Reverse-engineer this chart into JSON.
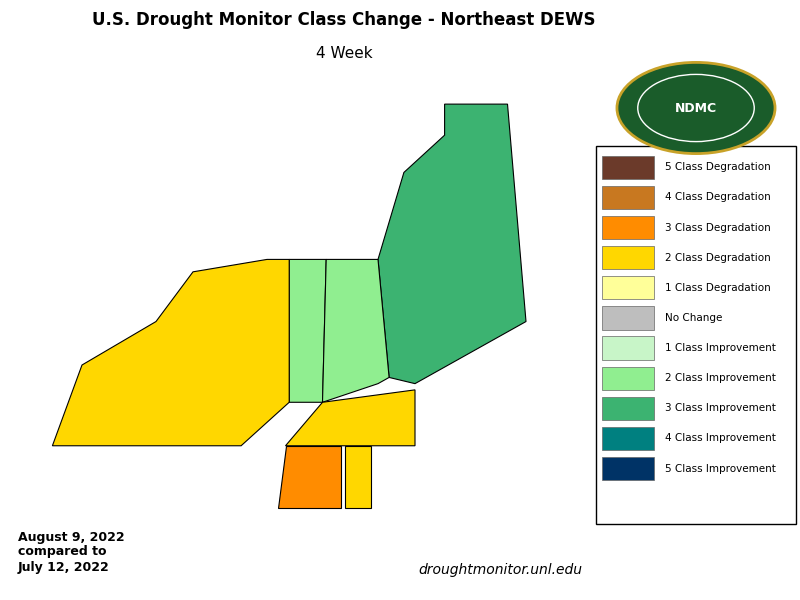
{
  "title_line1": "U.S. Drought Monitor Class Change - Northeast DEWS",
  "title_line2": "4 Week",
  "date_text": "August 9, 2022\ncompared to\nJuly 12, 2022",
  "website_text": "droughtmonitor.unl.edu",
  "legend_entries": [
    {
      "label": "5 Class Degradation",
      "color": "#6B3A2A"
    },
    {
      "label": "4 Class Degradation",
      "color": "#C87820"
    },
    {
      "label": "3 Class Degradation",
      "color": "#FF8C00"
    },
    {
      "label": "2 Class Degradation",
      "color": "#FFD700"
    },
    {
      "label": "1 Class Degradation",
      "color": "#FFFF99"
    },
    {
      "label": "No Change",
      "color": "#BEBEBE"
    },
    {
      "label": "1 Class Improvement",
      "color": "#C8F5C8"
    },
    {
      "label": "2 Class Improvement",
      "color": "#90EE90"
    },
    {
      "label": "3 Class Improvement",
      "color": "#3CB371"
    },
    {
      "label": "4 Class Improvement",
      "color": "#008080"
    },
    {
      "label": "5 Class Improvement",
      "color": "#003366"
    }
  ],
  "background_color": "#FFFFFF",
  "map_background": "#FFFFFF",
  "border_color": "#000000",
  "figsize": [
    8.0,
    6.0
  ],
  "dpi": 100
}
